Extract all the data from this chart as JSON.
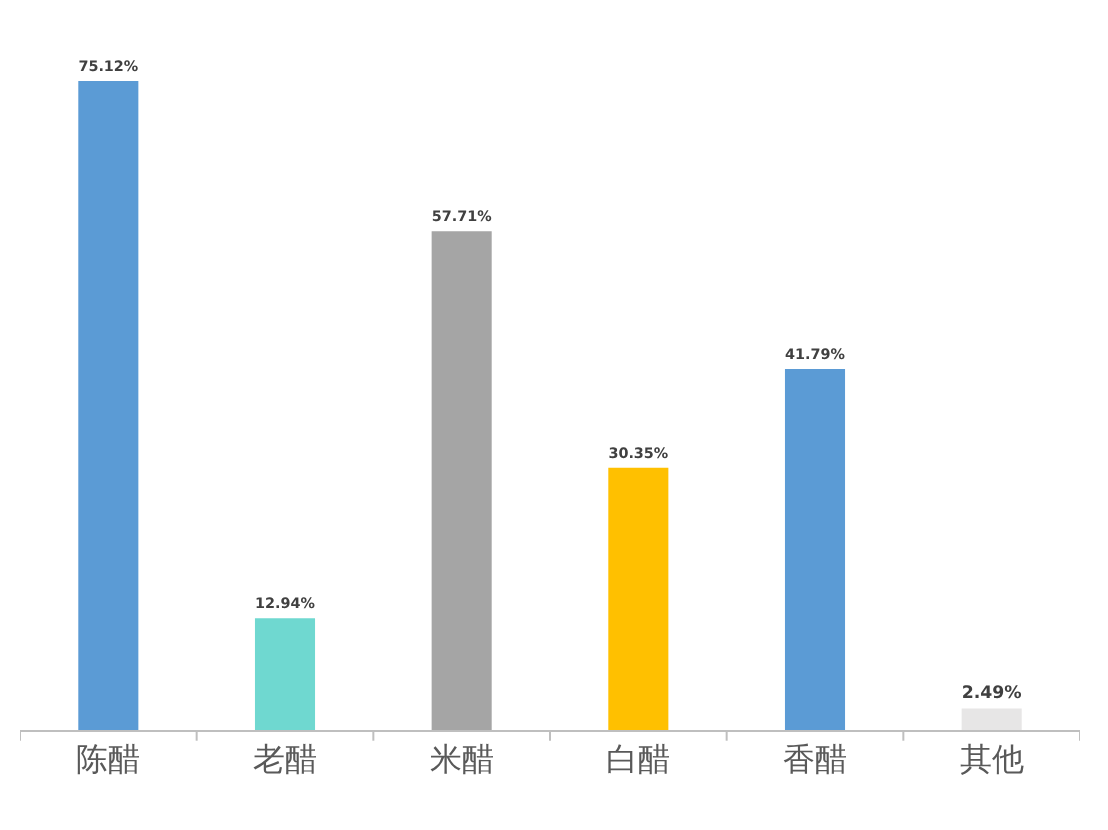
{
  "chart_data": {
    "type": "bar",
    "categories": [
      "陈醋",
      "老醋",
      "米醋",
      "白醋",
      "香醋",
      "其他"
    ],
    "values": [
      75.12,
      12.94,
      57.71,
      30.35,
      41.79,
      2.49
    ],
    "colors": [
      "#5b9bd5",
      "#6fd8d0",
      "#a5a5a5",
      "#ffc000",
      "#5b9bd5",
      "#e7e6e6"
    ],
    "value_labels": [
      "75.12%",
      "12.94%",
      "57.71%",
      "30.35%",
      "41.79%",
      "2.49%"
    ]
  }
}
